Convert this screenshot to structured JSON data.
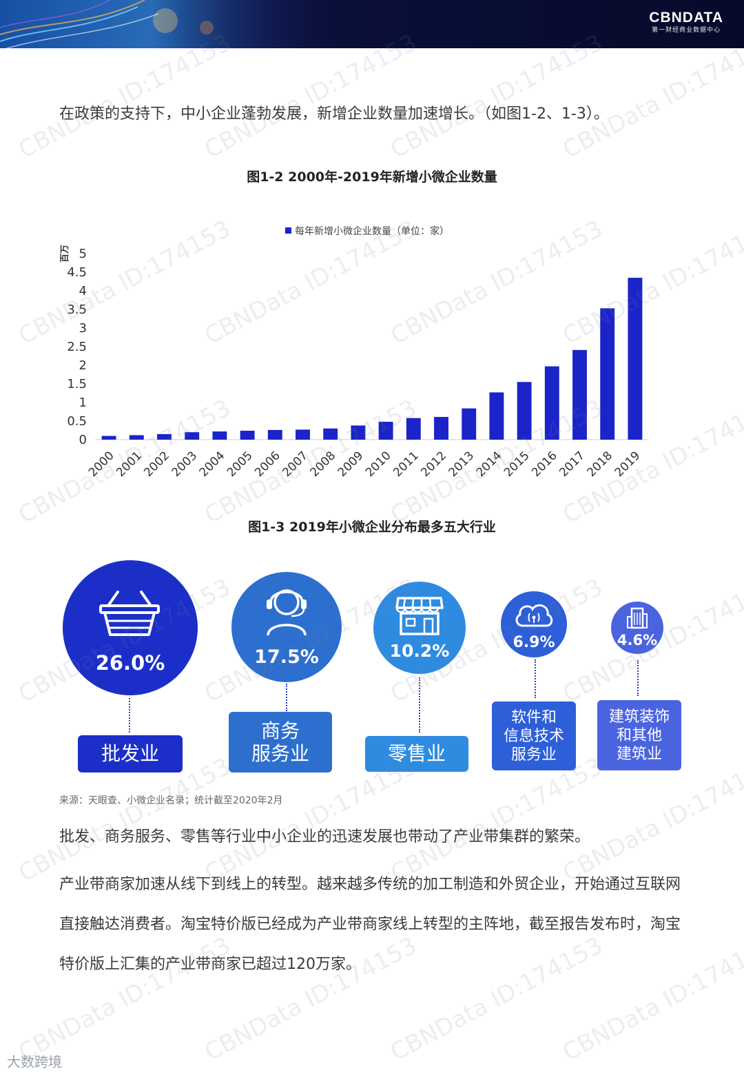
{
  "header": {
    "brand_name": "CBNDATA",
    "brand_sub": "第一财经商业数据中心"
  },
  "intro_text": "在政策的支持下，中小企业蓬勃发展，新增企业数量加速增长。（如图1-2、1-3）。",
  "figure1": {
    "title": "图1-2 2000年-2019年新增小微企业数量"
  },
  "chart_data": {
    "type": "bar",
    "title": "图1-2 2000年-2019年新增小微企业数量",
    "legend": [
      "每年新增小微企业数量（单位：家）"
    ],
    "ylabel": "百万",
    "ylim": [
      0,
      5
    ],
    "yticks": [
      0,
      0.5,
      1,
      1.5,
      2,
      2.5,
      3,
      3.5,
      4,
      4.5,
      5
    ],
    "yticks_labels": [
      "0",
      "0.5",
      "1",
      "1.5",
      "2",
      "2.5",
      "3",
      "3.5",
      "4",
      "4.5",
      "5"
    ],
    "grid": false,
    "legend_position": "top-center",
    "categories": [
      "2000",
      "2001",
      "2002",
      "2003",
      "2004",
      "2005",
      "2006",
      "2007",
      "2008",
      "2009",
      "2010",
      "2011",
      "2012",
      "2013",
      "2014",
      "2015",
      "2016",
      "2017",
      "2018",
      "2019"
    ],
    "series": [
      {
        "name": "每年新增小微企业数量（单位：家）",
        "color": "#1b24c8",
        "values": [
          0.1,
          0.12,
          0.15,
          0.2,
          0.22,
          0.24,
          0.26,
          0.27,
          0.3,
          0.38,
          0.48,
          0.58,
          0.61,
          0.84,
          1.27,
          1.55,
          1.97,
          2.41,
          3.53,
          4.35
        ]
      }
    ]
  },
  "figure2": {
    "title": "图1-3 2019年小微企业分布最多五大行业",
    "industries": [
      {
        "pct": "26.0%",
        "label_lines": [
          "批发业"
        ],
        "icon": "basket-icon",
        "color": "#1b2fc8"
      },
      {
        "pct": "17.5%",
        "label_lines": [
          "商务",
          "服务业"
        ],
        "icon": "headset-person-icon",
        "color": "#2d6fcf"
      },
      {
        "pct": "10.2%",
        "label_lines": [
          "零售业"
        ],
        "icon": "storefront-icon",
        "color": "#2e8be0"
      },
      {
        "pct": "6.9%",
        "label_lines": [
          "软件和",
          "信息技术",
          "服务业"
        ],
        "icon": "cloud-signal-icon",
        "color": "#2d5fd8"
      },
      {
        "pct": "4.6%",
        "label_lines": [
          "建筑装饰",
          "和其他",
          "建筑业"
        ],
        "icon": "building-icon",
        "color": "#4a64e0"
      }
    ]
  },
  "source_text": "来源：天眼查、小微企业名录；统计截至2020年2月",
  "paragraph2": "批发、商务服务、零售等行业中小企业的迅速发展也带动了产业带集群的繁荣。",
  "paragraph3": "产业带商家加速从线下到线上的转型。越来越多传统的加工制造和外贸企业，开始通过互联网直接触达消费者。淘宝特价版已经成为产业带商家线上转型的主阵地，截至报告发布时，淘宝特价版上汇集的产业带商家已超过120万家。",
  "watermark_text": "CBNData ID:174153",
  "footer_logo": "大数跨境"
}
